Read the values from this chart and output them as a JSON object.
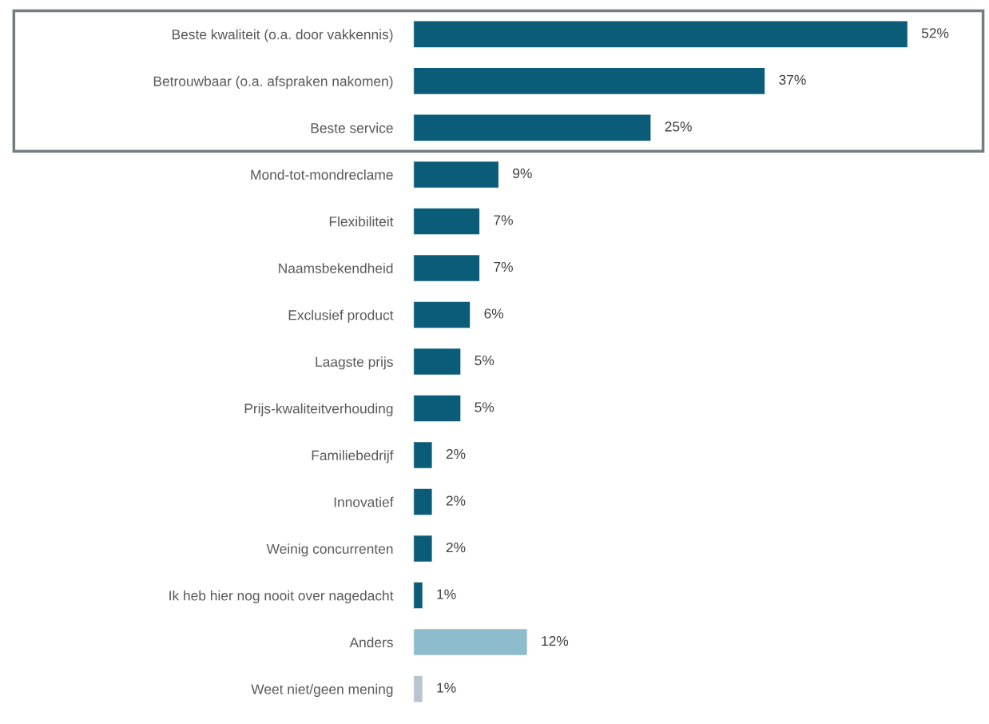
{
  "chart_data": {
    "type": "bar",
    "orientation": "horizontal",
    "data_labels": true,
    "grid": false,
    "legend": false,
    "categories": [
      "Beste kwaliteit (o.a. door vakkennis)",
      "Betrouwbaar (o.a. afspraken nakomen)",
      "Beste service",
      "Mond-tot-mondreclame",
      "Flexibiliteit",
      "Naamsbekendheid",
      "Exclusief product",
      "Laagste prijs",
      "Prijs-kwaliteitverhouding",
      "Familiebedrijf",
      "Innovatief",
      "Weinig concurrenten",
      "Ik heb hier nog nooit over nagedacht",
      "Anders",
      "Weet niet/geen mening"
    ],
    "values": [
      52,
      37,
      25,
      9,
      7,
      7,
      6,
      5,
      5,
      2,
      2,
      2,
      1,
      12,
      1
    ],
    "value_labels": [
      "52%",
      "37%",
      "25%",
      "9%",
      "7%",
      "7%",
      "6%",
      "5%",
      "5%",
      "2%",
      "2%",
      "2%",
      "1%",
      "12%",
      "1%"
    ],
    "colors": [
      "#0b5c79",
      "#0b5c79",
      "#0b5c79",
      "#0b5c79",
      "#0b5c79",
      "#0b5c79",
      "#0b5c79",
      "#0b5c79",
      "#0b5c79",
      "#0b5c79",
      "#0b5c79",
      "#0b5c79",
      "#0b5c79",
      "#8dbccc",
      "#b8c4cf"
    ]
  }
}
